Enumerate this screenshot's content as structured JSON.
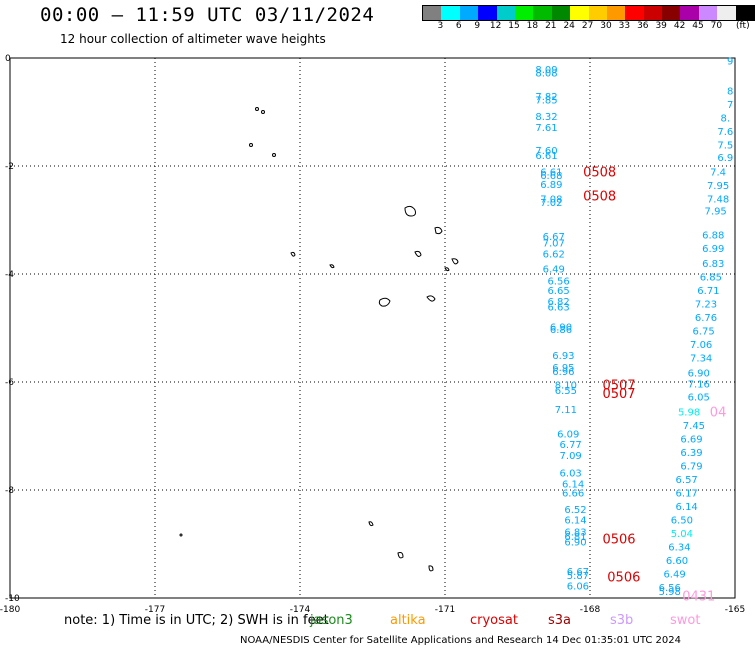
{
  "header": {
    "title": "00:00 – 11:59 UTC 03/11/2024",
    "subtitle": "12 hour collection of altimeter wave heights"
  },
  "legend": {
    "unit": "(ft)",
    "colors": [
      "#808080",
      "#00ffff",
      "#00aaff",
      "#0000ff",
      "#00cccc",
      "#00ee00",
      "#00bb00",
      "#008800",
      "#ffff00",
      "#ffcc00",
      "#ff9900",
      "#ff0000",
      "#cc0000",
      "#880000",
      "#aa00aa",
      "#cc88ff",
      "#eeeeee",
      "#000000"
    ],
    "labels": [
      "3",
      "6",
      "9",
      "12",
      "15",
      "18",
      "21",
      "24",
      "27",
      "30",
      "33",
      "36",
      "39",
      "42",
      "45",
      "70"
    ]
  },
  "axes": {
    "x_ticks": [
      "-180",
      "-177",
      "-174",
      "-171",
      "-168",
      "-165"
    ],
    "y_ticks": [
      "0",
      "-2",
      "-4",
      "-6",
      "-8",
      "-10"
    ]
  },
  "missions": [
    {
      "name": "jason3",
      "color": "#1a8a1a"
    },
    {
      "name": "altika",
      "color": "#ff9900"
    },
    {
      "name": "cryosat",
      "color": "#dd0000"
    },
    {
      "name": "s3a",
      "color": "#990000"
    },
    {
      "name": "s3b",
      "color": "#cc99ff"
    },
    {
      "name": "swot",
      "color": "#ff99dd"
    }
  ],
  "note": "note: 1) Time is in UTC; 2) SWH is in feet",
  "footer": "NOAA/NESDIS Center for Satellite Applications and Research    14 Dec 01:35:01 UTC 2024",
  "track_labels": [
    {
      "text": "0508",
      "lon": -167.8,
      "lat": -2.1,
      "color": "#dd0000"
    },
    {
      "text": "0508",
      "lon": -167.8,
      "lat": -2.55,
      "color": "#dd0000"
    },
    {
      "text": "0507",
      "lon": -167.4,
      "lat": -6.05,
      "color": "#dd0000"
    },
    {
      "text": "0507",
      "lon": -167.4,
      "lat": -6.2,
      "color": "#dd0000"
    },
    {
      "text": "0506",
      "lon": -167.4,
      "lat": -8.9,
      "color": "#dd0000"
    },
    {
      "text": "0506",
      "lon": -167.3,
      "lat": -9.6,
      "color": "#dd0000"
    },
    {
      "text": "04",
      "lon": -165.35,
      "lat": -6.55,
      "color": "#ff99dd"
    },
    {
      "text": "0431",
      "lon": -165.75,
      "lat": -9.95,
      "color": "#ff99dd"
    }
  ],
  "swh_readings": [
    {
      "v": "8.09",
      "lon": -168.9,
      "lat": -0.2,
      "color": "#00aaff"
    },
    {
      "v": "8.08",
      "lon": -168.9,
      "lat": -0.27,
      "color": "#00aaff"
    },
    {
      "v": "7.82",
      "lon": -168.9,
      "lat": -0.7,
      "color": "#00aaff"
    },
    {
      "v": "7.85",
      "lon": -168.9,
      "lat": -0.77,
      "color": "#00aaff"
    },
    {
      "v": "8.32",
      "lon": -168.9,
      "lat": -1.07,
      "color": "#00aaff"
    },
    {
      "v": "7.61",
      "lon": -168.9,
      "lat": -1.28,
      "color": "#00aaff"
    },
    {
      "v": "7.60",
      "lon": -168.9,
      "lat": -1.7,
      "color": "#00aaff"
    },
    {
      "v": "6.61",
      "lon": -168.9,
      "lat": -1.8,
      "color": "#00aaff"
    },
    {
      "v": "6.61",
      "lon": -168.8,
      "lat": -2.1,
      "color": "#00aaff"
    },
    {
      "v": "6.68",
      "lon": -168.8,
      "lat": -2.17,
      "color": "#00aaff"
    },
    {
      "v": "6.89",
      "lon": -168.8,
      "lat": -2.33,
      "color": "#00aaff"
    },
    {
      "v": "7.08",
      "lon": -168.8,
      "lat": -2.6,
      "color": "#00aaff"
    },
    {
      "v": "7.02",
      "lon": -168.8,
      "lat": -2.67,
      "color": "#00aaff"
    },
    {
      "v": "6.67",
      "lon": -168.75,
      "lat": -3.3,
      "color": "#00aaff"
    },
    {
      "v": "7.07",
      "lon": -168.75,
      "lat": -3.42,
      "color": "#00aaff"
    },
    {
      "v": "6.62",
      "lon": -168.75,
      "lat": -3.62,
      "color": "#00aaff"
    },
    {
      "v": "6.49",
      "lon": -168.75,
      "lat": -3.9,
      "color": "#00aaff"
    },
    {
      "v": "6.56",
      "lon": -168.65,
      "lat": -4.12,
      "color": "#00aaff"
    },
    {
      "v": "6.65",
      "lon": -168.65,
      "lat": -4.3,
      "color": "#00aaff"
    },
    {
      "v": "6.82",
      "lon": -168.65,
      "lat": -4.5,
      "color": "#00aaff"
    },
    {
      "v": "6.63",
      "lon": -168.65,
      "lat": -4.6,
      "color": "#00aaff"
    },
    {
      "v": "6.90",
      "lon": -168.6,
      "lat": -4.97,
      "color": "#00aaff"
    },
    {
      "v": "6.86",
      "lon": -168.6,
      "lat": -5.02,
      "color": "#00aaff"
    },
    {
      "v": "6.93",
      "lon": -168.55,
      "lat": -5.5,
      "color": "#00aaff"
    },
    {
      "v": "6.95",
      "lon": -168.55,
      "lat": -5.72,
      "color": "#00aaff"
    },
    {
      "v": "6.96",
      "lon": -168.55,
      "lat": -5.8,
      "color": "#00aaff"
    },
    {
      "v": "8.10",
      "lon": -168.5,
      "lat": -6.05,
      "color": "#00aaff"
    },
    {
      "v": "6.55",
      "lon": -168.5,
      "lat": -6.15,
      "color": "#00aaff"
    },
    {
      "v": "7.11",
      "lon": -168.5,
      "lat": -6.5,
      "color": "#00aaff"
    },
    {
      "v": "6.09",
      "lon": -168.45,
      "lat": -6.95,
      "color": "#00aaff"
    },
    {
      "v": "6.77",
      "lon": -168.4,
      "lat": -7.15,
      "color": "#00aaff"
    },
    {
      "v": "7.09",
      "lon": -168.4,
      "lat": -7.35,
      "color": "#00aaff"
    },
    {
      "v": "6.03",
      "lon": -168.4,
      "lat": -7.68,
      "color": "#00aaff"
    },
    {
      "v": "6.14",
      "lon": -168.35,
      "lat": -7.88,
      "color": "#00aaff"
    },
    {
      "v": "6.66",
      "lon": -168.35,
      "lat": -8.05,
      "color": "#00aaff"
    },
    {
      "v": "6.52",
      "lon": -168.3,
      "lat": -8.35,
      "color": "#00aaff"
    },
    {
      "v": "6.14",
      "lon": -168.3,
      "lat": -8.55,
      "color": "#00aaff"
    },
    {
      "v": "6.83",
      "lon": -168.3,
      "lat": -8.77,
      "color": "#00aaff"
    },
    {
      "v": "6.81",
      "lon": -168.3,
      "lat": -8.85,
      "color": "#00aaff"
    },
    {
      "v": "6.90",
      "lon": -168.3,
      "lat": -8.95,
      "color": "#00aaff"
    },
    {
      "v": "6.67",
      "lon": -168.25,
      "lat": -9.5,
      "color": "#00aaff"
    },
    {
      "v": "5.87",
      "lon": -168.25,
      "lat": -9.57,
      "color": "#00aaff"
    },
    {
      "v": "6.06",
      "lon": -168.25,
      "lat": -9.77,
      "color": "#00aaff"
    },
    {
      "v": "9",
      "lon": -165.1,
      "lat": -0.05,
      "color": "#00aaff"
    },
    {
      "v": "8",
      "lon": -165.1,
      "lat": -0.6,
      "color": "#00aaff"
    },
    {
      "v": "7",
      "lon": -165.1,
      "lat": -0.85,
      "color": "#00aaff"
    },
    {
      "v": "8.",
      "lon": -165.2,
      "lat": -1.1,
      "color": "#00aaff"
    },
    {
      "v": "7.6",
      "lon": -165.2,
      "lat": -1.35,
      "color": "#00aaff"
    },
    {
      "v": "7.5",
      "lon": -165.2,
      "lat": -1.6,
      "color": "#00aaff"
    },
    {
      "v": "6.9",
      "lon": -165.2,
      "lat": -1.83,
      "color": "#00aaff"
    },
    {
      "v": "7.4",
      "lon": -165.35,
      "lat": -2.1,
      "color": "#00aaff"
    },
    {
      "v": "7.95",
      "lon": -165.35,
      "lat": -2.35,
      "color": "#00aaff"
    },
    {
      "v": "7.48",
      "lon": -165.35,
      "lat": -2.6,
      "color": "#00aaff"
    },
    {
      "v": "7.95",
      "lon": -165.4,
      "lat": -2.82,
      "color": "#00aaff"
    },
    {
      "v": "6.88",
      "lon": -165.45,
      "lat": -3.27,
      "color": "#00aaff"
    },
    {
      "v": "6.99",
      "lon": -165.45,
      "lat": -3.52,
      "color": "#00aaff"
    },
    {
      "v": "6.83",
      "lon": -165.45,
      "lat": -3.8,
      "color": "#00aaff"
    },
    {
      "v": "6.85",
      "lon": -165.5,
      "lat": -4.05,
      "color": "#00aaff"
    },
    {
      "v": "6.71",
      "lon": -165.55,
      "lat": -4.3,
      "color": "#00aaff"
    },
    {
      "v": "7.23",
      "lon": -165.6,
      "lat": -4.55,
      "color": "#00aaff"
    },
    {
      "v": "6.76",
      "lon": -165.6,
      "lat": -4.8,
      "color": "#00aaff"
    },
    {
      "v": "6.75",
      "lon": -165.65,
      "lat": -5.05,
      "color": "#00aaff"
    },
    {
      "v": "7.06",
      "lon": -165.7,
      "lat": -5.3,
      "color": "#00aaff"
    },
    {
      "v": "7.34",
      "lon": -165.7,
      "lat": -5.55,
      "color": "#00aaff"
    },
    {
      "v": "6.90",
      "lon": -165.75,
      "lat": -5.82,
      "color": "#00aaff"
    },
    {
      "v": "7.16",
      "lon": -165.75,
      "lat": -6.03,
      "color": "#00aaff"
    },
    {
      "v": "6.05",
      "lon": -165.75,
      "lat": -6.27,
      "color": "#00aaff"
    },
    {
      "v": "5.98",
      "lon": -165.95,
      "lat": -6.55,
      "color": "#00eeee"
    },
    {
      "v": "7.45",
      "lon": -165.85,
      "lat": -6.8,
      "color": "#00aaff"
    },
    {
      "v": "6.69",
      "lon": -165.9,
      "lat": -7.05,
      "color": "#00aaff"
    },
    {
      "v": "6.39",
      "lon": -165.9,
      "lat": -7.3,
      "color": "#00aaff"
    },
    {
      "v": "6.79",
      "lon": -165.9,
      "lat": -7.55,
      "color": "#00aaff"
    },
    {
      "v": "6.57",
      "lon": -166.0,
      "lat": -7.8,
      "color": "#00aaff"
    },
    {
      "v": "6.17",
      "lon": -166.0,
      "lat": -8.05,
      "color": "#00aaff"
    },
    {
      "v": "6.14",
      "lon": -166.0,
      "lat": -8.3,
      "color": "#00aaff"
    },
    {
      "v": "6.50",
      "lon": -166.1,
      "lat": -8.55,
      "color": "#00aaff"
    },
    {
      "v": "5.04",
      "lon": -166.1,
      "lat": -8.8,
      "color": "#00eeee"
    },
    {
      "v": "6.34",
      "lon": -166.15,
      "lat": -9.05,
      "color": "#00aaff"
    },
    {
      "v": "6.60",
      "lon": -166.2,
      "lat": -9.3,
      "color": "#00aaff"
    },
    {
      "v": "6.49",
      "lon": -166.25,
      "lat": -9.55,
      "color": "#00aaff"
    },
    {
      "v": "6.56",
      "lon": -166.35,
      "lat": -9.8,
      "color": "#00aaff"
    },
    {
      "v": "5.98",
      "lon": -166.35,
      "lat": -9.87,
      "color": "#00aaff"
    }
  ]
}
